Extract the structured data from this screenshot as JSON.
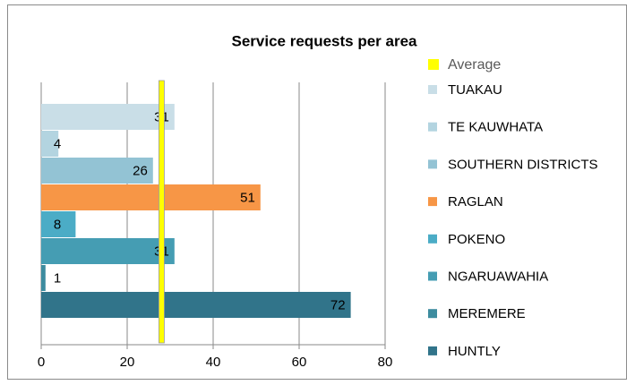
{
  "chart_data": {
    "type": "bar",
    "orientation": "horizontal",
    "title": "Service requests per area",
    "series": [
      {
        "name": "TUAKAU",
        "color": "#c9dee7",
        "values": [
          31
        ]
      },
      {
        "name": "TE KAUWHATA",
        "color": "#b3d4e0",
        "values": [
          4
        ]
      },
      {
        "name": "SOUTHERN DISTRICTS",
        "color": "#93c3d4",
        "values": [
          26
        ]
      },
      {
        "name": "RAGLAN",
        "color": "#f79646",
        "values": [
          51
        ]
      },
      {
        "name": "POKENO",
        "color": "#4bacc6",
        "values": [
          8
        ]
      },
      {
        "name": "NGARUAWAHIA",
        "color": "#459db3",
        "values": [
          31
        ]
      },
      {
        "name": "MEREMERE",
        "color": "#3d8c9f",
        "values": [
          1
        ]
      },
      {
        "name": "HUNTLY",
        "color": "#31748a",
        "values": [
          72
        ]
      }
    ],
    "average": {
      "name": "Average",
      "color": "#ffff00",
      "value": 28
    },
    "xlim": [
      0,
      80
    ],
    "xticks": [
      0,
      20,
      40,
      60,
      80
    ],
    "grid": true
  }
}
